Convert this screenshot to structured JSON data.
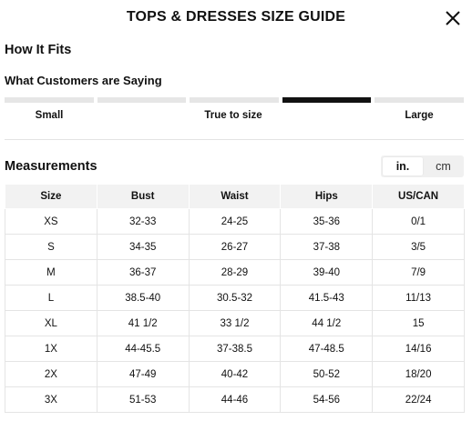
{
  "header": {
    "title": "TOPS & DRESSES SIZE GUIDE"
  },
  "how_it_fits": {
    "title": "How It Fits",
    "customers_title": "What Customers are Saying",
    "scale_positions": 5,
    "selected_position": 4,
    "labels": {
      "small": "Small",
      "true": "True to size",
      "large": "Large"
    }
  },
  "measurements": {
    "title": "Measurements",
    "units": {
      "inch": "in.",
      "cm": "cm",
      "selected": "in."
    },
    "columns": [
      "Size",
      "Bust",
      "Waist",
      "Hips",
      "US/CAN"
    ],
    "rows": [
      [
        "XS",
        "32-33",
        "24-25",
        "35-36",
        "0/1"
      ],
      [
        "S",
        "34-35",
        "26-27",
        "37-38",
        "3/5"
      ],
      [
        "M",
        "36-37",
        "28-29",
        "39-40",
        "7/9"
      ],
      [
        "L",
        "38.5-40",
        "30.5-32",
        "41.5-43",
        "11/13"
      ],
      [
        "XL",
        "41 1/2",
        "33 1/2",
        "44 1/2",
        "15"
      ],
      [
        "1X",
        "44-45.5",
        "37-38.5",
        "47-48.5",
        "14/16"
      ],
      [
        "2X",
        "47-49",
        "40-42",
        "50-52",
        "18/20"
      ],
      [
        "3X",
        "51-53",
        "44-46",
        "54-56",
        "22/24"
      ]
    ]
  }
}
